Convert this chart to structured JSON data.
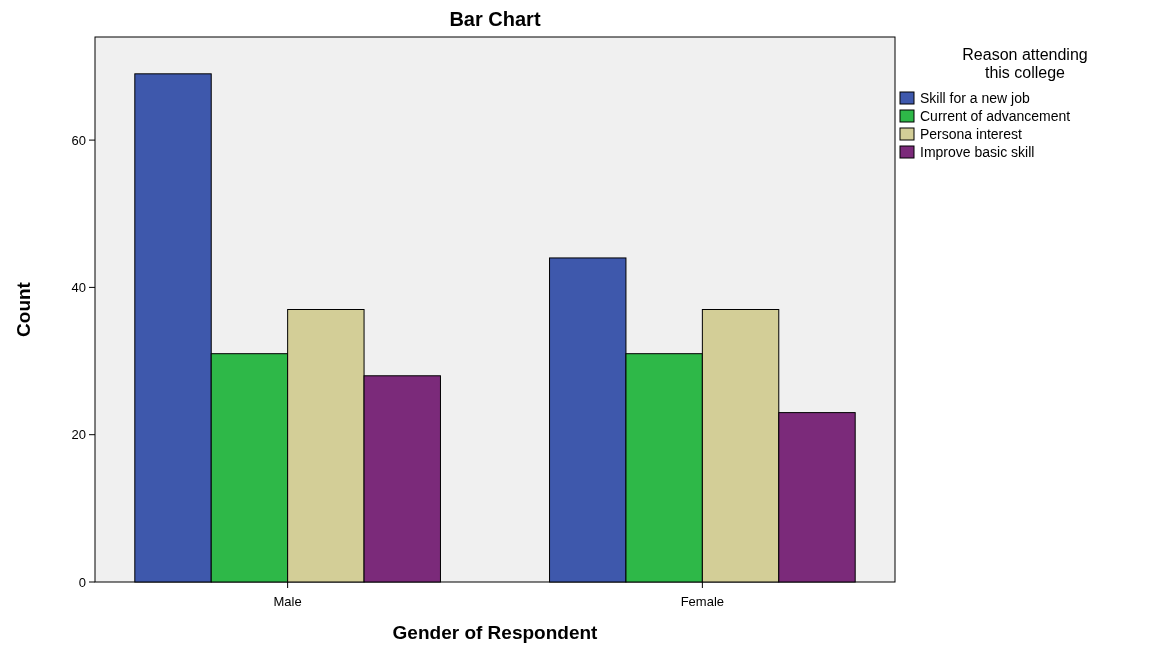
{
  "chart_data": {
    "type": "bar",
    "title": "Bar Chart",
    "xlabel": "Gender of Respondent",
    "ylabel": "Count",
    "legend_title": "Reason attending this college",
    "categories": [
      "Male",
      "Female"
    ],
    "series": [
      {
        "name": "Skill for a new job",
        "color": "#3e58ac",
        "values": [
          69,
          44
        ]
      },
      {
        "name": "Current of advancement",
        "color": "#2eb848",
        "values": [
          31,
          31
        ]
      },
      {
        "name": "Persona interest",
        "color": "#d3ce97",
        "values": [
          37,
          37
        ]
      },
      {
        "name": "Improve basic skill",
        "color": "#7b2a7a",
        "values": [
          28,
          23
        ]
      }
    ],
    "ylim": [
      0,
      74
    ],
    "yticks": [
      0,
      20,
      40,
      60
    ],
    "grid": false,
    "legend": "top right"
  }
}
